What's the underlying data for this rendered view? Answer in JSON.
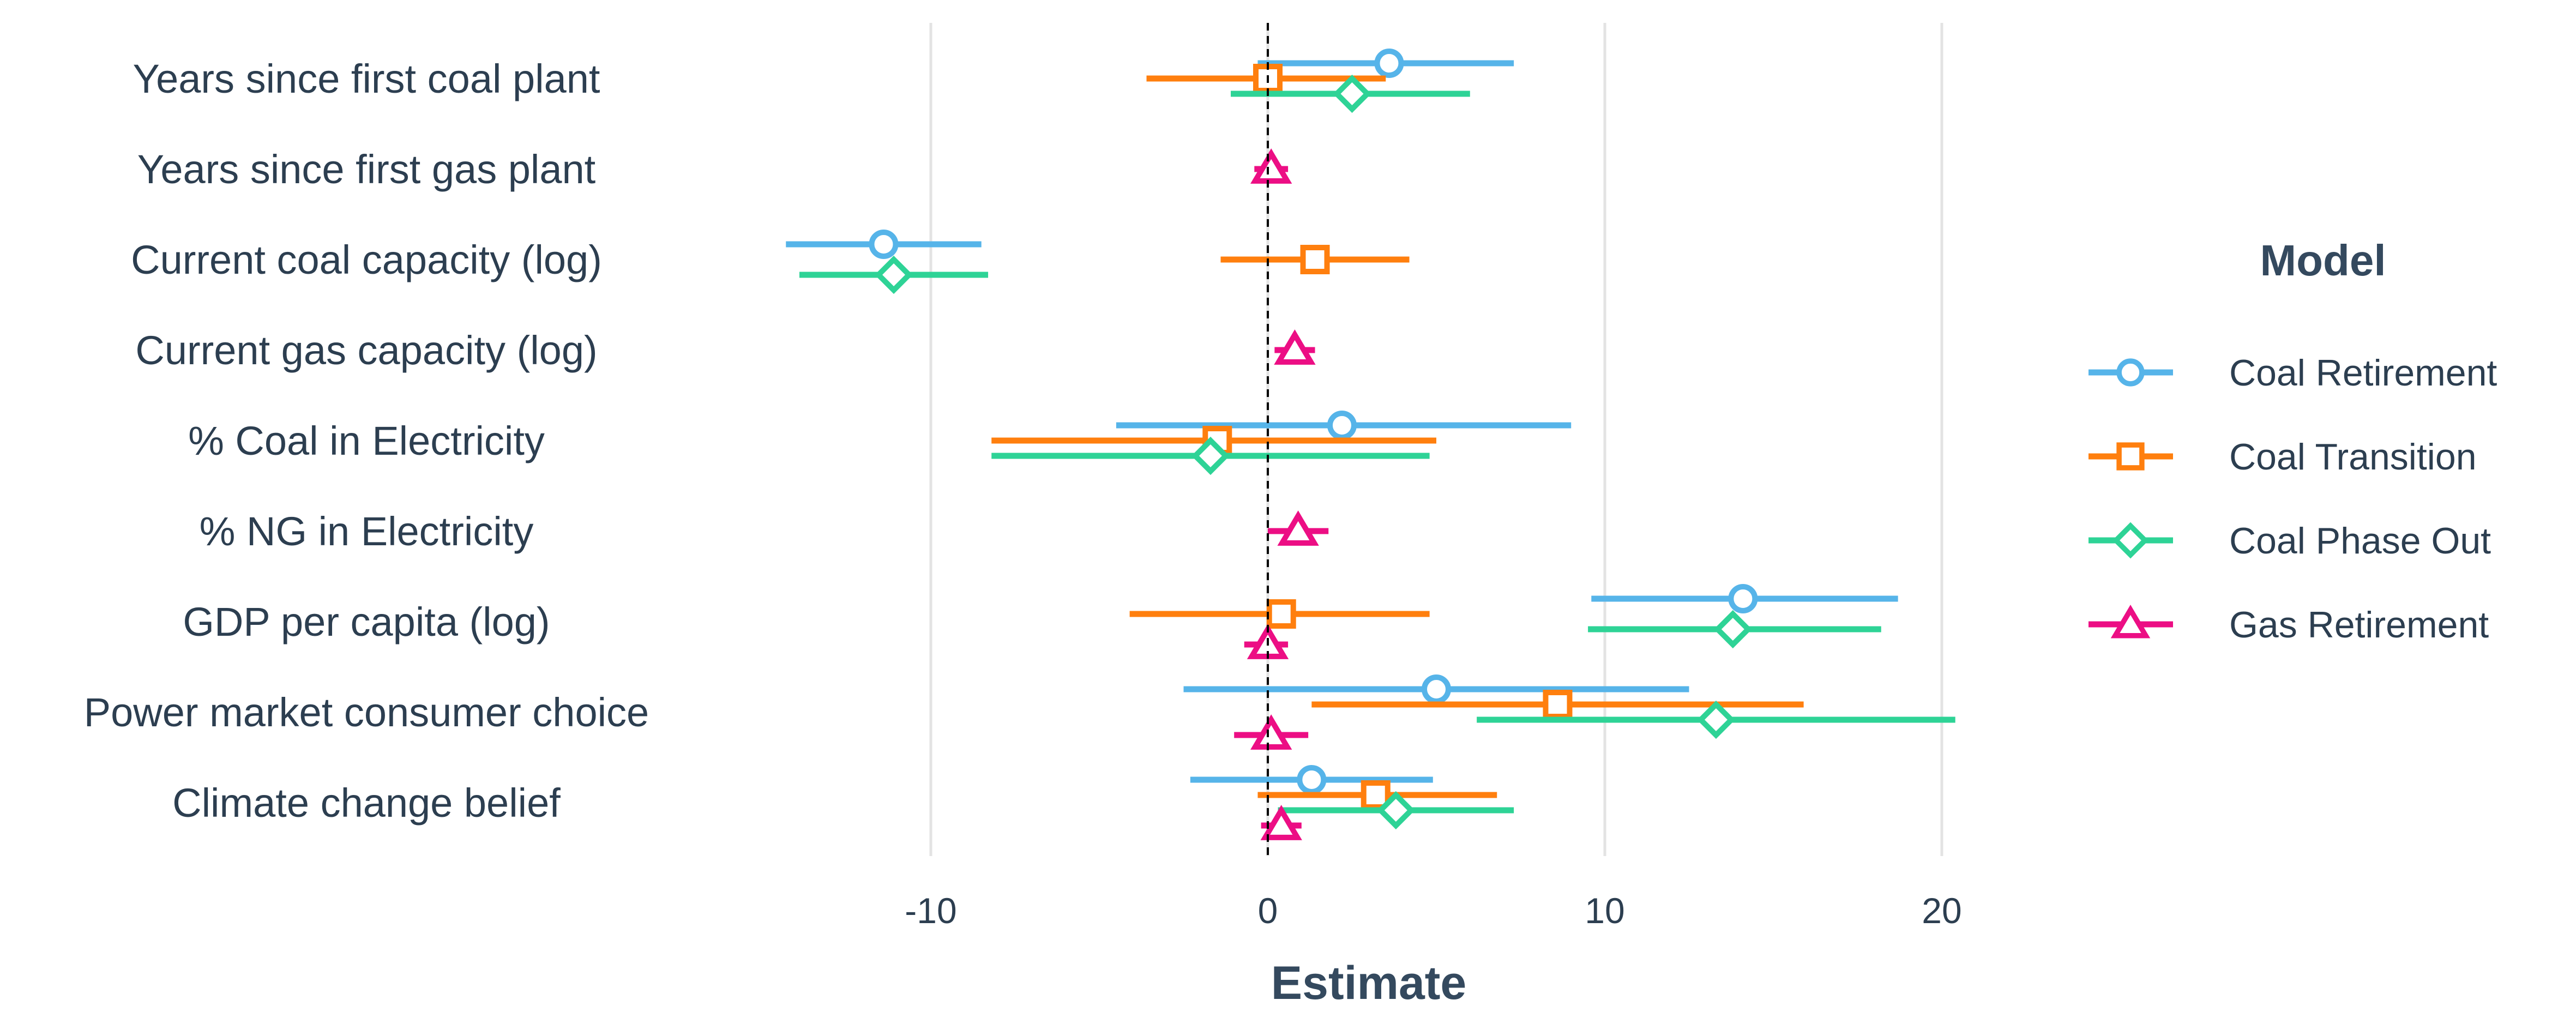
{
  "chart_data": {
    "type": "scatter",
    "subtype": "coefficient-plot",
    "xlabel": "Estimate",
    "x_ticks": [
      -10,
      0,
      10,
      20
    ],
    "xlim": [
      -15,
      21
    ],
    "zero_reference_line": "dashed",
    "grid": "vertical-major",
    "legend_title": "Model",
    "legend_position": "right",
    "categories": [
      "Years since first coal plant",
      "Years since first gas plant",
      "Current coal capacity (log)",
      "Current gas capacity (log)",
      "% Coal in Electricity",
      "% NG in Electricity",
      "GDP per capita (log)",
      "Power market consumer choice",
      "Climate change belief"
    ],
    "series": [
      {
        "name": "Coal Retirement",
        "color": "#56b4e9",
        "marker": "circle",
        "estimates": [
          3.6,
          null,
          -11.4,
          null,
          2.2,
          null,
          14.1,
          5.0,
          1.3
        ],
        "lower": [
          -0.3,
          null,
          -14.3,
          null,
          -4.5,
          null,
          9.6,
          -2.5,
          -2.3
        ],
        "upper": [
          7.3,
          null,
          -8.5,
          null,
          9.0,
          null,
          18.7,
          12.5,
          4.9
        ]
      },
      {
        "name": "Coal Transition",
        "color": "#ff7f0e",
        "marker": "square",
        "estimates": [
          0.0,
          null,
          1.4,
          null,
          -1.5,
          null,
          0.4,
          8.6,
          3.2
        ],
        "lower": [
          -3.6,
          null,
          -1.4,
          null,
          -8.2,
          null,
          -4.1,
          1.3,
          -0.3
        ],
        "upper": [
          3.5,
          null,
          4.2,
          null,
          5.0,
          null,
          4.8,
          15.9,
          6.8
        ]
      },
      {
        "name": "Coal Phase Out",
        "color": "#2ed396",
        "marker": "diamond",
        "estimates": [
          2.5,
          null,
          -11.1,
          null,
          -1.7,
          null,
          13.8,
          13.3,
          3.8
        ],
        "lower": [
          -1.1,
          null,
          -13.9,
          null,
          -8.2,
          null,
          9.5,
          6.2,
          0.3
        ],
        "upper": [
          6.0,
          null,
          -8.3,
          null,
          4.8,
          null,
          18.2,
          20.4,
          7.3
        ]
      },
      {
        "name": "Gas Retirement",
        "color": "#ec0e84",
        "marker": "triangle",
        "estimates": [
          null,
          0.1,
          null,
          0.8,
          null,
          0.9,
          0.0,
          0.1,
          0.4
        ],
        "lower": [
          null,
          -0.4,
          null,
          0.2,
          null,
          0.0,
          -0.7,
          -1.0,
          -0.2
        ],
        "upper": [
          null,
          0.6,
          null,
          1.4,
          null,
          1.8,
          0.6,
          1.2,
          1.0
        ]
      }
    ]
  }
}
